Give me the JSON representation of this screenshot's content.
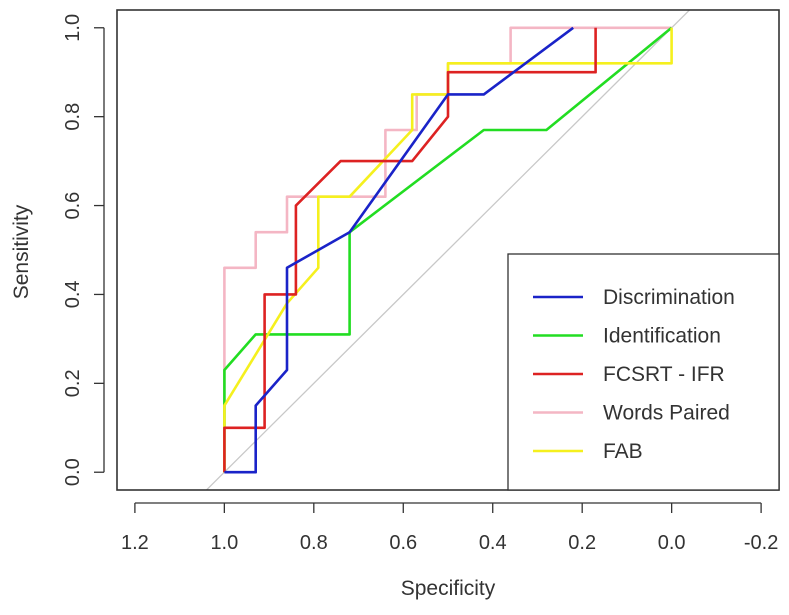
{
  "chart_data": {
    "type": "line",
    "title": "",
    "xlabel": "Specificity",
    "ylabel": "Sensitivity",
    "xlim": [
      1.24,
      -0.24
    ],
    "ylim": [
      -0.04,
      1.04
    ],
    "xticks": [
      1.2,
      1.0,
      0.8,
      0.6,
      0.4,
      0.2,
      0.0,
      -0.2
    ],
    "xtick_labels": [
      "1.2",
      "1.0",
      "0.8",
      "0.6",
      "0.4",
      "0.2",
      "0.0",
      "-0.2"
    ],
    "yticks": [
      0.0,
      0.2,
      0.4,
      0.6,
      0.8,
      1.0
    ],
    "ytick_labels": [
      "0.0",
      "0.2",
      "0.4",
      "0.6",
      "0.8",
      "1.0"
    ],
    "reference_line": {
      "name": "chance",
      "color": "#c8c8c8",
      "points": [
        [
          1.05,
          -0.05
        ],
        [
          -0.05,
          1.05
        ]
      ]
    },
    "legend_position": "bottom-right",
    "series": [
      {
        "name": "Discrimination",
        "color": "#1a23c8",
        "x": [
          1.0,
          0.93,
          0.93,
          0.86,
          0.86,
          0.72,
          0.5,
          0.42,
          0.22
        ],
        "y": [
          0.0,
          0.0,
          0.15,
          0.23,
          0.46,
          0.54,
          0.85,
          0.85,
          1.0
        ]
      },
      {
        "name": "Identification",
        "color": "#22dd22",
        "x": [
          1.0,
          1.0,
          0.93,
          0.72,
          0.72,
          0.42,
          0.28,
          0.0
        ],
        "y": [
          0.0,
          0.23,
          0.31,
          0.31,
          0.54,
          0.77,
          0.77,
          1.0
        ]
      },
      {
        "name": "FCSRT - IFR",
        "color": "#dd2222",
        "x": [
          1.0,
          1.0,
          0.91,
          0.91,
          0.84,
          0.84,
          0.74,
          0.58,
          0.5,
          0.5,
          0.17,
          0.17
        ],
        "y": [
          0.0,
          0.1,
          0.1,
          0.4,
          0.4,
          0.6,
          0.7,
          0.7,
          0.8,
          0.9,
          0.9,
          1.0
        ]
      },
      {
        "name": "Words Paired",
        "color": "#f4b6c4",
        "x": [
          1.0,
          1.0,
          0.93,
          0.93,
          0.86,
          0.86,
          0.83,
          0.83,
          0.64,
          0.64,
          0.57,
          0.57,
          0.5,
          0.5,
          0.36,
          0.36,
          0.0
        ],
        "y": [
          0.0,
          0.46,
          0.46,
          0.54,
          0.54,
          0.62,
          0.62,
          0.62,
          0.62,
          0.77,
          0.77,
          0.85,
          0.85,
          0.92,
          0.92,
          1.0,
          1.0
        ]
      },
      {
        "name": "FAB",
        "color": "#f5f01e",
        "x": [
          1.0,
          1.0,
          0.86,
          0.79,
          0.79,
          0.72,
          0.58,
          0.58,
          0.5,
          0.5,
          0.0,
          0.0
        ],
        "y": [
          0.0,
          0.15,
          0.38,
          0.46,
          0.62,
          0.62,
          0.77,
          0.85,
          0.85,
          0.92,
          0.92,
          1.0
        ]
      }
    ]
  }
}
